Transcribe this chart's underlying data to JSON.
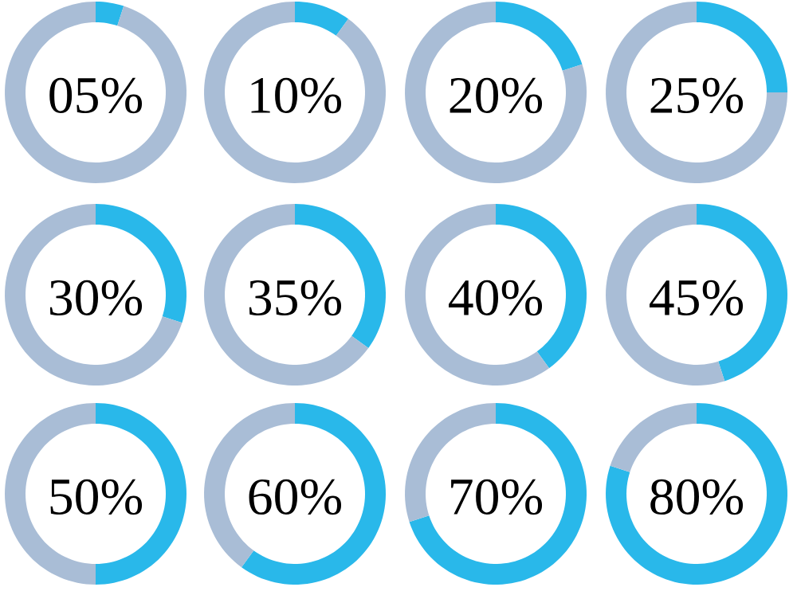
{
  "chart_data": [
    {
      "type": "donut",
      "categories": [
        null,
        null
      ],
      "values": [
        5,
        95
      ],
      "colors": [
        "#29b8ea",
        "#a9bdd6"
      ],
      "annotations": [
        "05%"
      ]
    },
    {
      "type": "donut",
      "categories": [
        null,
        null
      ],
      "values": [
        10,
        90
      ],
      "colors": [
        "#29b8ea",
        "#a9bdd6"
      ],
      "annotations": [
        "10%"
      ]
    },
    {
      "type": "donut",
      "categories": [
        null,
        null
      ],
      "values": [
        20,
        80
      ],
      "colors": [
        "#29b8ea",
        "#a9bdd6"
      ],
      "annotations": [
        "20%"
      ]
    },
    {
      "type": "donut",
      "categories": [
        null,
        null
      ],
      "values": [
        25,
        75
      ],
      "colors": [
        "#29b8ea",
        "#a9bdd6"
      ],
      "annotations": [
        "25%"
      ]
    },
    {
      "type": "donut",
      "categories": [
        null,
        null
      ],
      "values": [
        30,
        70
      ],
      "colors": [
        "#29b8ea",
        "#a9bdd6"
      ],
      "annotations": [
        "30%"
      ]
    },
    {
      "type": "donut",
      "categories": [
        null,
        null
      ],
      "values": [
        35,
        65
      ],
      "colors": [
        "#29b8ea",
        "#a9bdd6"
      ],
      "annotations": [
        "35%"
      ]
    },
    {
      "type": "donut",
      "categories": [
        null,
        null
      ],
      "values": [
        40,
        60
      ],
      "colors": [
        "#29b8ea",
        "#a9bdd6"
      ],
      "annotations": [
        "40%"
      ]
    },
    {
      "type": "donut",
      "categories": [
        null,
        null
      ],
      "values": [
        45,
        55
      ],
      "colors": [
        "#29b8ea",
        "#a9bdd6"
      ],
      "annotations": [
        "45%"
      ]
    },
    {
      "type": "donut",
      "categories": [
        null,
        null
      ],
      "values": [
        50,
        50
      ],
      "colors": [
        "#29b8ea",
        "#a9bdd6"
      ],
      "annotations": [
        "50%"
      ]
    },
    {
      "type": "donut",
      "categories": [
        null,
        null
      ],
      "values": [
        60,
        40
      ],
      "colors": [
        "#29b8ea",
        "#a9bdd6"
      ],
      "annotations": [
        "60%"
      ]
    },
    {
      "type": "donut",
      "categories": [
        null,
        null
      ],
      "values": [
        70,
        30
      ],
      "colors": [
        "#29b8ea",
        "#a9bdd6"
      ],
      "annotations": [
        "70%"
      ]
    },
    {
      "type": "donut",
      "categories": [
        null,
        null
      ],
      "values": [
        80,
        20
      ],
      "colors": [
        "#29b8ea",
        "#a9bdd6"
      ],
      "annotations": [
        "80%"
      ]
    }
  ]
}
